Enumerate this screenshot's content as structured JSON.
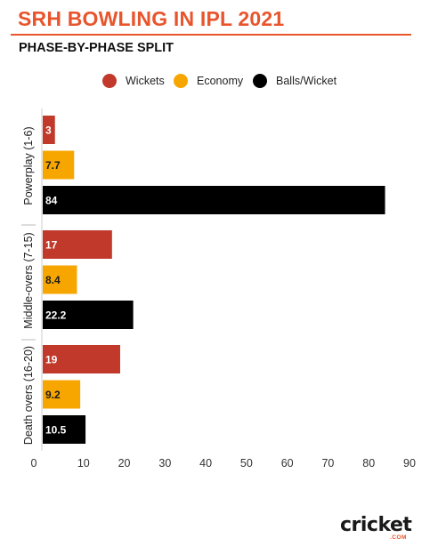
{
  "header": {
    "title": "SRH BOWLING IN IPL 2021",
    "subtitle": "PHASE-BY-PHASE SPLIT"
  },
  "logo": {
    "text": "cricket",
    "sub": ".COM"
  },
  "colors": {
    "title": "#e8552c",
    "wickets": "#c0392b",
    "economy": "#f7a600",
    "balls_per_wicket": "#000000"
  },
  "chart_data": {
    "type": "bar",
    "orientation": "horizontal",
    "title": "SRH BOWLING IN IPL 2021",
    "subtitle": "PHASE-BY-PHASE SPLIT",
    "categories": [
      "Powerplay (1-6)",
      "Middle-overs (7-15)",
      "Death overs (16-20)"
    ],
    "series": [
      {
        "name": "Wickets",
        "color": "#c0392b",
        "values": [
          3,
          17,
          19
        ],
        "labels": [
          "3",
          "17",
          "19"
        ]
      },
      {
        "name": "Economy",
        "color": "#f7a600",
        "values": [
          7.7,
          8.4,
          9.2
        ],
        "labels": [
          "7.7",
          "8.4",
          "9.2"
        ]
      },
      {
        "name": "Balls/Wicket",
        "color": "#000000",
        "values": [
          84,
          22.2,
          10.5
        ],
        "labels": [
          "84",
          "22.2",
          "10.5"
        ]
      }
    ],
    "xlim": [
      0,
      90
    ],
    "xticks": [
      "0",
      "10",
      "20",
      "30",
      "40",
      "50",
      "60",
      "70",
      "80",
      "90"
    ],
    "xlabel": "",
    "ylabel": "",
    "legend_position": "top",
    "grid": false
  }
}
